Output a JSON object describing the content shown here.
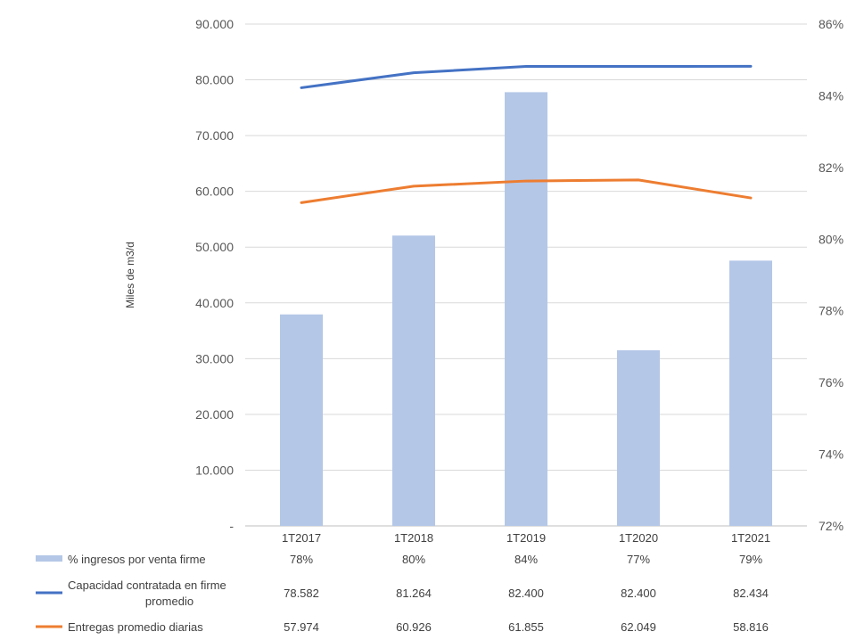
{
  "chart_data": {
    "type": "bar",
    "ylabel": "Miles de m3/d",
    "categories": [
      "1T2017",
      "1T2018",
      "1T2019",
      "1T2020",
      "1T2021"
    ],
    "y_left": {
      "ylim": [
        0,
        90000
      ],
      "tick_labels": [
        "-",
        "10.000",
        "20.000",
        "30.000",
        "40.000",
        "50.000",
        "60.000",
        "70.000",
        "80.000",
        "90.000"
      ]
    },
    "y_right": {
      "ylim": [
        72,
        86
      ],
      "tick_labels": [
        "72%",
        "74%",
        "76%",
        "78%",
        "80%",
        "82%",
        "84%",
        "86%"
      ]
    },
    "grid": true,
    "legend": "data-table-bottom",
    "series": [
      {
        "name": "% ingresos por venta firme",
        "type": "bar",
        "axis": "right",
        "color": "#B4C7E7",
        "values": [
          77.9,
          80.1,
          84.1,
          76.9,
          79.4
        ],
        "labels": [
          "78%",
          "80%",
          "84%",
          "77%",
          "79%"
        ]
      },
      {
        "name": "Capacidad contratada en firme promedio",
        "name_lines": [
          "Capacidad contratada en firme",
          "promedio"
        ],
        "type": "line",
        "axis": "left",
        "color": "#4472C4",
        "values": [
          78582,
          81264,
          82400,
          82400,
          82434
        ],
        "labels": [
          "78.582",
          "81.264",
          "82.400",
          "82.400",
          "82.434"
        ]
      },
      {
        "name": "Entregas promedio diarias",
        "type": "line",
        "axis": "left",
        "color": "#ED7D31",
        "values": [
          57974,
          60926,
          61855,
          62049,
          58816
        ],
        "labels": [
          "57.974",
          "60.926",
          "61.855",
          "62.049",
          "58.816"
        ]
      }
    ]
  }
}
